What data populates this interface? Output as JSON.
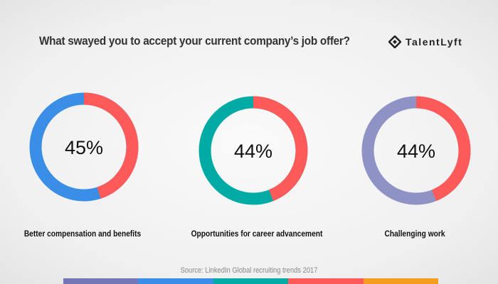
{
  "title": "What swayed you to accept your current company’s job offer?",
  "logo": {
    "text": "TalentLyft",
    "icon": "diamond-logo-icon"
  },
  "chart_data": [
    {
      "type": "pie",
      "variant": "donut",
      "value": 45,
      "label": "45%",
      "category": "Better compensation and benefits",
      "colors": {
        "value": "#ff5a5a",
        "rest": "#3a8ee6"
      }
    },
    {
      "type": "pie",
      "variant": "donut",
      "value": 44,
      "label": "44%",
      "category": "Opportunities for career advancement",
      "colors": {
        "value": "#ff5a5a",
        "rest": "#00aaa5"
      }
    },
    {
      "type": "pie",
      "variant": "donut",
      "value": 44,
      "label": "44%",
      "category": "Challenging work",
      "colors": {
        "value": "#ff5a5a",
        "rest": "#8e92c4"
      }
    }
  ],
  "source": "Source: LinkedIn Global recruiting trends 2017",
  "footer_colors": [
    "#7477b5",
    "#3a8ee6",
    "#00aaa5",
    "#ff5a5a",
    "#f59d1f"
  ]
}
